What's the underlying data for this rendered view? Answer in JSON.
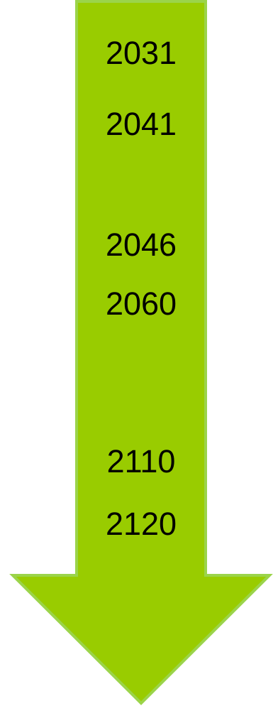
{
  "colors": {
    "arrow_fill": "#99cc00",
    "arrow_stroke": "#9bd44a"
  },
  "icon": "down-arrow",
  "timeline": {
    "years": [
      "2031",
      "2041",
      "2046",
      "2060",
      "2110",
      "2120"
    ]
  }
}
